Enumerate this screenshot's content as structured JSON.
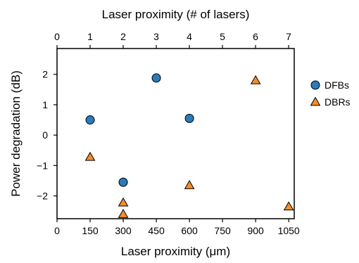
{
  "chart_data": {
    "type": "scatter",
    "xlabel": "Laser proximity (μm)",
    "x2label": "Laser proximity (# of lasers)",
    "ylabel": "Power degradation (dB)",
    "xlim": [
      0,
      1075
    ],
    "ylim": [
      -2.75,
      2.85
    ],
    "x2lim": [
      0,
      7.17
    ],
    "xticks": [
      0,
      150,
      300,
      450,
      600,
      750,
      900,
      1050
    ],
    "x2ticks": [
      0,
      1,
      2,
      3,
      4,
      5,
      6,
      7
    ],
    "yticks": [
      -2,
      -1,
      0,
      1,
      2
    ],
    "grid": false,
    "legend_position": "outside-right",
    "series": [
      {
        "name": "DFBs",
        "marker": "circle",
        "color": "#2b7bba",
        "points": [
          {
            "x": 150,
            "y": 0.5
          },
          {
            "x": 300,
            "y": -1.55
          },
          {
            "x": 450,
            "y": 1.88
          },
          {
            "x": 600,
            "y": 0.55
          }
        ]
      },
      {
        "name": "DBRs",
        "marker": "triangle",
        "color": "#f28e2b",
        "points": [
          {
            "x": 150,
            "y": -0.72
          },
          {
            "x": 300,
            "y": -2.22
          },
          {
            "x": 300,
            "y": -2.6
          },
          {
            "x": 600,
            "y": -1.65
          },
          {
            "x": 900,
            "y": 1.8
          },
          {
            "x": 1050,
            "y": -2.35
          }
        ]
      }
    ]
  }
}
